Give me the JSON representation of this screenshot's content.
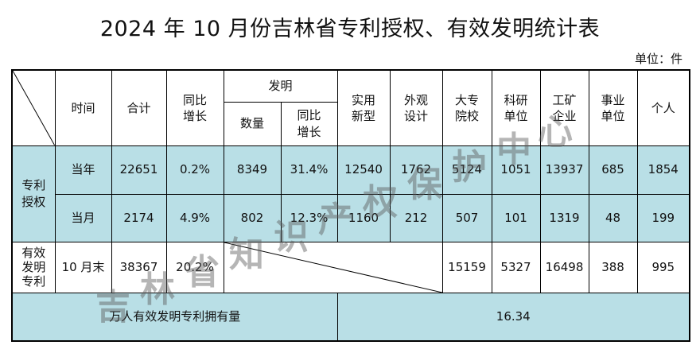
{
  "title": "2024 年 10 月份吉林省专利授权、有效发明统计表",
  "unit": "单位：件",
  "headers": {
    "time": "时间",
    "total": "合计",
    "yoy": [
      "同比",
      "增长"
    ],
    "invention": "发明",
    "inv_count": "数量",
    "inv_yoy": [
      "同比",
      "增长"
    ],
    "utility": [
      "实用",
      "新型"
    ],
    "design": [
      "外观",
      "设计"
    ],
    "university": [
      "大专",
      "院校"
    ],
    "research": [
      "科研",
      "单位"
    ],
    "industry": [
      "工矿",
      "企业"
    ],
    "institution": [
      "事业",
      "单位"
    ],
    "individual": "个人"
  },
  "grant": {
    "label": [
      "专利",
      "授权"
    ],
    "year": {
      "period": "当年",
      "total": "22651",
      "yoy": "0.2%",
      "inv_count": "8349",
      "inv_yoy": "31.4%",
      "utility": "12540",
      "design": "1762",
      "university": "5124",
      "research": "1051",
      "industry": "13937",
      "institution": "685",
      "individual": "1854"
    },
    "month": {
      "period": "当月",
      "total": "2174",
      "yoy": "4.9%",
      "inv_count": "802",
      "inv_yoy": "12.3%",
      "utility": "1160",
      "design": "212",
      "university": "507",
      "research": "101",
      "industry": "1319",
      "institution": "48",
      "individual": "199"
    }
  },
  "valid": {
    "label": [
      "有效",
      "发明",
      "专利"
    ],
    "period": "10 月末",
    "total": "38367",
    "yoy": "20.2%",
    "university": "15159",
    "research": "5327",
    "industry": "16498",
    "institution": "388",
    "individual": "995"
  },
  "per_capita": {
    "label": "万人有效发明专利拥有量",
    "value": "16.34"
  },
  "watermark": [
    "吉",
    "林",
    "省",
    "知",
    "识",
    "产",
    "权",
    "保",
    "护",
    "中",
    "心"
  ],
  "colors": {
    "row_fill": "#b9dfe6",
    "border": "#000000"
  }
}
